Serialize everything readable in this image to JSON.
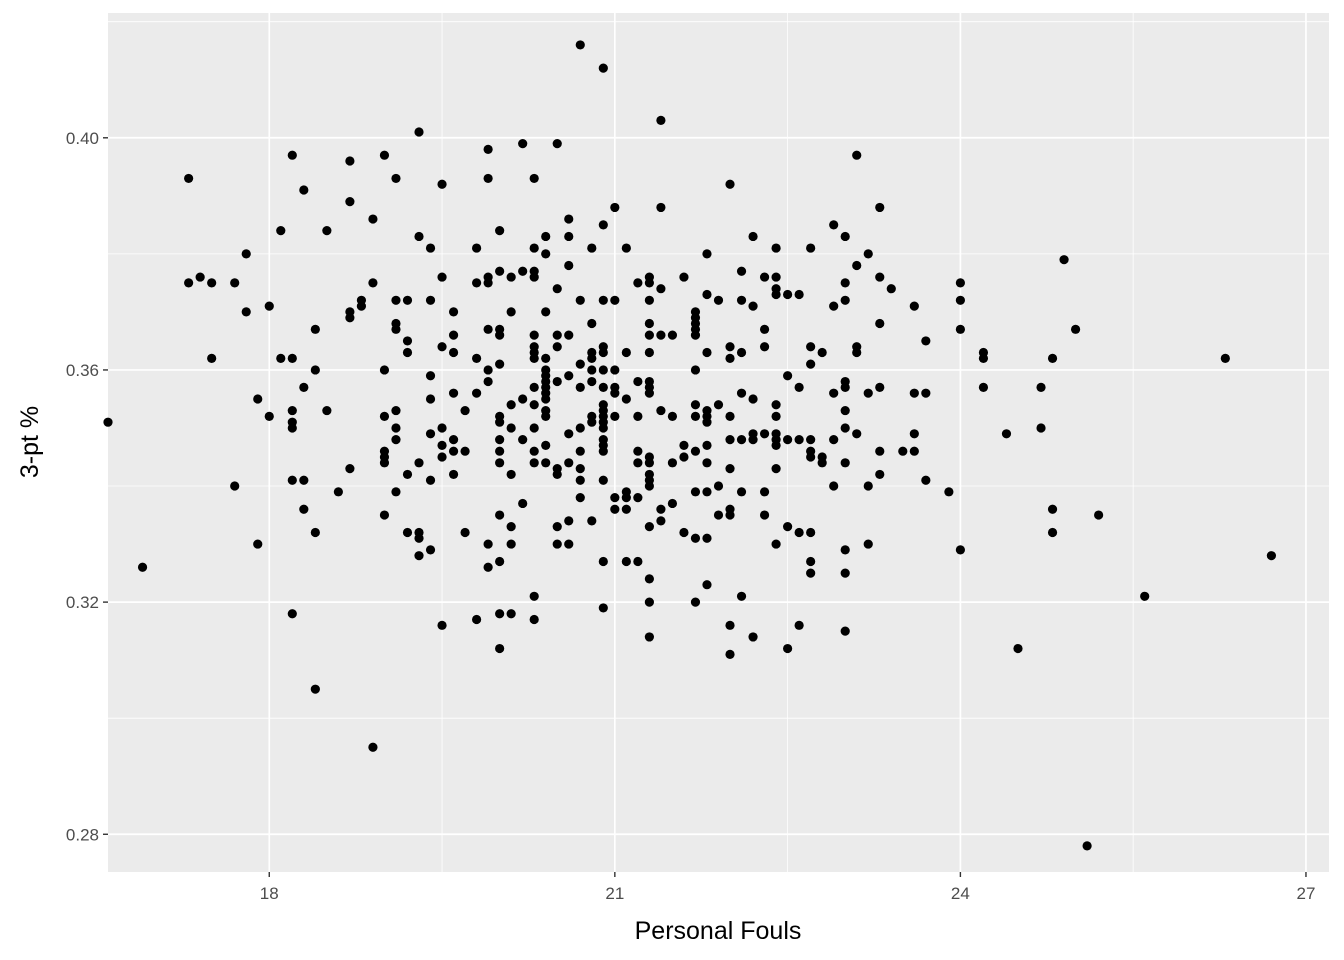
{
  "chart_data": {
    "type": "scatter",
    "title": "",
    "xlabel": "Personal Fouls",
    "ylabel": "3-pt %",
    "xlim": [
      16.6,
      27.2
    ],
    "ylim": [
      0.2735,
      0.4215
    ],
    "x_ticks": [
      18,
      21,
      24,
      27
    ],
    "x_tick_labels": [
      "18",
      "21",
      "24",
      "27"
    ],
    "y_ticks": [
      0.28,
      0.32,
      0.36,
      0.4
    ],
    "y_tick_labels": [
      "0.28",
      "0.32",
      "0.36",
      "0.40"
    ],
    "grid": true,
    "legend": "none",
    "colors": {
      "panel": "#ebebeb",
      "grid": "#ffffff",
      "point": "#000000"
    },
    "points": [
      [
        16.6,
        0.351
      ],
      [
        16.9,
        0.326
      ],
      [
        17.3,
        0.393
      ],
      [
        17.3,
        0.375
      ],
      [
        17.4,
        0.376
      ],
      [
        17.5,
        0.375
      ],
      [
        17.5,
        0.362
      ],
      [
        17.7,
        0.375
      ],
      [
        17.7,
        0.34
      ],
      [
        17.8,
        0.38
      ],
      [
        17.8,
        0.37
      ],
      [
        17.9,
        0.355
      ],
      [
        17.9,
        0.33
      ],
      [
        18.0,
        0.371
      ],
      [
        18.0,
        0.352
      ],
      [
        18.1,
        0.384
      ],
      [
        18.1,
        0.362
      ],
      [
        18.2,
        0.397
      ],
      [
        18.2,
        0.362
      ],
      [
        18.2,
        0.353
      ],
      [
        18.2,
        0.351
      ],
      [
        18.2,
        0.35
      ],
      [
        18.2,
        0.341
      ],
      [
        18.2,
        0.318
      ],
      [
        18.3,
        0.391
      ],
      [
        18.3,
        0.357
      ],
      [
        18.3,
        0.341
      ],
      [
        18.3,
        0.336
      ],
      [
        18.4,
        0.367
      ],
      [
        18.4,
        0.36
      ],
      [
        18.4,
        0.332
      ],
      [
        18.4,
        0.305
      ],
      [
        18.5,
        0.384
      ],
      [
        18.5,
        0.353
      ],
      [
        18.6,
        0.339
      ],
      [
        18.7,
        0.396
      ],
      [
        18.7,
        0.389
      ],
      [
        18.7,
        0.37
      ],
      [
        18.7,
        0.369
      ],
      [
        18.7,
        0.343
      ],
      [
        18.8,
        0.372
      ],
      [
        18.8,
        0.371
      ],
      [
        18.9,
        0.386
      ],
      [
        18.9,
        0.375
      ],
      [
        18.9,
        0.295
      ],
      [
        19.0,
        0.397
      ],
      [
        19.0,
        0.36
      ],
      [
        19.0,
        0.352
      ],
      [
        19.0,
        0.346
      ],
      [
        19.0,
        0.345
      ],
      [
        19.0,
        0.344
      ],
      [
        19.0,
        0.335
      ],
      [
        19.1,
        0.393
      ],
      [
        19.1,
        0.372
      ],
      [
        19.1,
        0.368
      ],
      [
        19.1,
        0.367
      ],
      [
        19.1,
        0.353
      ],
      [
        19.1,
        0.35
      ],
      [
        19.1,
        0.348
      ],
      [
        19.1,
        0.339
      ],
      [
        19.2,
        0.372
      ],
      [
        19.2,
        0.365
      ],
      [
        19.2,
        0.363
      ],
      [
        19.2,
        0.342
      ],
      [
        19.2,
        0.332
      ],
      [
        19.3,
        0.401
      ],
      [
        19.3,
        0.383
      ],
      [
        19.3,
        0.344
      ],
      [
        19.3,
        0.332
      ],
      [
        19.3,
        0.331
      ],
      [
        19.3,
        0.328
      ],
      [
        19.4,
        0.381
      ],
      [
        19.4,
        0.372
      ],
      [
        19.4,
        0.359
      ],
      [
        19.4,
        0.355
      ],
      [
        19.4,
        0.349
      ],
      [
        19.4,
        0.341
      ],
      [
        19.4,
        0.329
      ],
      [
        19.5,
        0.392
      ],
      [
        19.5,
        0.376
      ],
      [
        19.5,
        0.364
      ],
      [
        19.5,
        0.35
      ],
      [
        19.5,
        0.347
      ],
      [
        19.5,
        0.345
      ],
      [
        19.5,
        0.316
      ],
      [
        19.6,
        0.37
      ],
      [
        19.6,
        0.366
      ],
      [
        19.6,
        0.363
      ],
      [
        19.6,
        0.356
      ],
      [
        19.6,
        0.348
      ],
      [
        19.6,
        0.346
      ],
      [
        19.6,
        0.342
      ],
      [
        19.7,
        0.353
      ],
      [
        19.7,
        0.346
      ],
      [
        19.7,
        0.332
      ],
      [
        19.8,
        0.381
      ],
      [
        19.8,
        0.375
      ],
      [
        19.8,
        0.362
      ],
      [
        19.8,
        0.356
      ],
      [
        19.8,
        0.317
      ],
      [
        19.9,
        0.398
      ],
      [
        19.9,
        0.393
      ],
      [
        19.9,
        0.376
      ],
      [
        19.9,
        0.375
      ],
      [
        19.9,
        0.367
      ],
      [
        19.9,
        0.36
      ],
      [
        19.9,
        0.358
      ],
      [
        19.9,
        0.33
      ],
      [
        19.9,
        0.326
      ],
      [
        20.0,
        0.384
      ],
      [
        20.0,
        0.377
      ],
      [
        20.0,
        0.367
      ],
      [
        20.0,
        0.366
      ],
      [
        20.0,
        0.361
      ],
      [
        20.0,
        0.352
      ],
      [
        20.0,
        0.351
      ],
      [
        20.0,
        0.348
      ],
      [
        20.0,
        0.346
      ],
      [
        20.0,
        0.344
      ],
      [
        20.0,
        0.335
      ],
      [
        20.0,
        0.327
      ],
      [
        20.0,
        0.318
      ],
      [
        20.0,
        0.312
      ],
      [
        20.1,
        0.376
      ],
      [
        20.1,
        0.37
      ],
      [
        20.1,
        0.354
      ],
      [
        20.1,
        0.35
      ],
      [
        20.1,
        0.342
      ],
      [
        20.1,
        0.333
      ],
      [
        20.1,
        0.33
      ],
      [
        20.1,
        0.318
      ],
      [
        20.2,
        0.399
      ],
      [
        20.2,
        0.377
      ],
      [
        20.2,
        0.355
      ],
      [
        20.2,
        0.348
      ],
      [
        20.2,
        0.337
      ],
      [
        20.3,
        0.393
      ],
      [
        20.3,
        0.381
      ],
      [
        20.3,
        0.377
      ],
      [
        20.3,
        0.376
      ],
      [
        20.3,
        0.366
      ],
      [
        20.3,
        0.364
      ],
      [
        20.3,
        0.363
      ],
      [
        20.3,
        0.362
      ],
      [
        20.3,
        0.357
      ],
      [
        20.3,
        0.354
      ],
      [
        20.3,
        0.35
      ],
      [
        20.3,
        0.346
      ],
      [
        20.3,
        0.344
      ],
      [
        20.3,
        0.321
      ],
      [
        20.3,
        0.317
      ],
      [
        20.4,
        0.383
      ],
      [
        20.4,
        0.38
      ],
      [
        20.4,
        0.37
      ],
      [
        20.4,
        0.362
      ],
      [
        20.4,
        0.36
      ],
      [
        20.4,
        0.359
      ],
      [
        20.4,
        0.358
      ],
      [
        20.4,
        0.357
      ],
      [
        20.4,
        0.356
      ],
      [
        20.4,
        0.355
      ],
      [
        20.4,
        0.353
      ],
      [
        20.4,
        0.352
      ],
      [
        20.4,
        0.347
      ],
      [
        20.4,
        0.344
      ],
      [
        20.5,
        0.399
      ],
      [
        20.5,
        0.374
      ],
      [
        20.5,
        0.366
      ],
      [
        20.5,
        0.364
      ],
      [
        20.5,
        0.358
      ],
      [
        20.5,
        0.343
      ],
      [
        20.5,
        0.342
      ],
      [
        20.5,
        0.333
      ],
      [
        20.5,
        0.33
      ],
      [
        20.6,
        0.386
      ],
      [
        20.6,
        0.383
      ],
      [
        20.6,
        0.378
      ],
      [
        20.6,
        0.366
      ],
      [
        20.6,
        0.359
      ],
      [
        20.6,
        0.349
      ],
      [
        20.6,
        0.344
      ],
      [
        20.6,
        0.334
      ],
      [
        20.6,
        0.33
      ],
      [
        20.7,
        0.416
      ],
      [
        20.7,
        0.372
      ],
      [
        20.7,
        0.361
      ],
      [
        20.7,
        0.357
      ],
      [
        20.7,
        0.35
      ],
      [
        20.7,
        0.346
      ],
      [
        20.7,
        0.343
      ],
      [
        20.7,
        0.341
      ],
      [
        20.7,
        0.338
      ],
      [
        20.8,
        0.381
      ],
      [
        20.8,
        0.368
      ],
      [
        20.8,
        0.363
      ],
      [
        20.8,
        0.362
      ],
      [
        20.8,
        0.36
      ],
      [
        20.8,
        0.358
      ],
      [
        20.8,
        0.352
      ],
      [
        20.8,
        0.351
      ],
      [
        20.8,
        0.334
      ],
      [
        20.9,
        0.412
      ],
      [
        20.9,
        0.385
      ],
      [
        20.9,
        0.372
      ],
      [
        20.9,
        0.364
      ],
      [
        20.9,
        0.363
      ],
      [
        20.9,
        0.36
      ],
      [
        20.9,
        0.357
      ],
      [
        20.9,
        0.354
      ],
      [
        20.9,
        0.353
      ],
      [
        20.9,
        0.352
      ],
      [
        20.9,
        0.351
      ],
      [
        20.9,
        0.35
      ],
      [
        20.9,
        0.348
      ],
      [
        20.9,
        0.347
      ],
      [
        20.9,
        0.346
      ],
      [
        20.9,
        0.341
      ],
      [
        20.9,
        0.327
      ],
      [
        20.9,
        0.319
      ],
      [
        21.0,
        0.388
      ],
      [
        21.0,
        0.372
      ],
      [
        21.0,
        0.36
      ],
      [
        21.0,
        0.357
      ],
      [
        21.0,
        0.356
      ],
      [
        21.0,
        0.352
      ],
      [
        21.0,
        0.338
      ],
      [
        21.0,
        0.336
      ],
      [
        21.1,
        0.381
      ],
      [
        21.1,
        0.363
      ],
      [
        21.1,
        0.355
      ],
      [
        21.1,
        0.339
      ],
      [
        21.1,
        0.338
      ],
      [
        21.1,
        0.336
      ],
      [
        21.1,
        0.327
      ],
      [
        21.2,
        0.375
      ],
      [
        21.2,
        0.358
      ],
      [
        21.2,
        0.352
      ],
      [
        21.2,
        0.346
      ],
      [
        21.2,
        0.344
      ],
      [
        21.2,
        0.338
      ],
      [
        21.2,
        0.327
      ],
      [
        21.3,
        0.376
      ],
      [
        21.3,
        0.375
      ],
      [
        21.3,
        0.372
      ],
      [
        21.3,
        0.368
      ],
      [
        21.3,
        0.366
      ],
      [
        21.3,
        0.363
      ],
      [
        21.3,
        0.358
      ],
      [
        21.3,
        0.357
      ],
      [
        21.3,
        0.356
      ],
      [
        21.3,
        0.345
      ],
      [
        21.3,
        0.344
      ],
      [
        21.3,
        0.342
      ],
      [
        21.3,
        0.341
      ],
      [
        21.3,
        0.34
      ],
      [
        21.3,
        0.333
      ],
      [
        21.3,
        0.324
      ],
      [
        21.3,
        0.32
      ],
      [
        21.3,
        0.314
      ],
      [
        21.4,
        0.403
      ],
      [
        21.4,
        0.388
      ],
      [
        21.4,
        0.374
      ],
      [
        21.4,
        0.366
      ],
      [
        21.4,
        0.353
      ],
      [
        21.4,
        0.336
      ],
      [
        21.4,
        0.334
      ],
      [
        21.5,
        0.366
      ],
      [
        21.5,
        0.352
      ],
      [
        21.5,
        0.344
      ],
      [
        21.5,
        0.337
      ],
      [
        21.6,
        0.376
      ],
      [
        21.6,
        0.347
      ],
      [
        21.6,
        0.345
      ],
      [
        21.6,
        0.332
      ],
      [
        21.7,
        0.37
      ],
      [
        21.7,
        0.369
      ],
      [
        21.7,
        0.368
      ],
      [
        21.7,
        0.367
      ],
      [
        21.7,
        0.366
      ],
      [
        21.7,
        0.36
      ],
      [
        21.7,
        0.354
      ],
      [
        21.7,
        0.352
      ],
      [
        21.7,
        0.346
      ],
      [
        21.7,
        0.339
      ],
      [
        21.7,
        0.331
      ],
      [
        21.7,
        0.32
      ],
      [
        21.8,
        0.38
      ],
      [
        21.8,
        0.373
      ],
      [
        21.8,
        0.363
      ],
      [
        21.8,
        0.353
      ],
      [
        21.8,
        0.352
      ],
      [
        21.8,
        0.351
      ],
      [
        21.8,
        0.347
      ],
      [
        21.8,
        0.344
      ],
      [
        21.8,
        0.339
      ],
      [
        21.8,
        0.331
      ],
      [
        21.8,
        0.323
      ],
      [
        21.9,
        0.372
      ],
      [
        21.9,
        0.354
      ],
      [
        21.9,
        0.34
      ],
      [
        21.9,
        0.335
      ],
      [
        22.0,
        0.392
      ],
      [
        22.0,
        0.364
      ],
      [
        22.0,
        0.362
      ],
      [
        22.0,
        0.352
      ],
      [
        22.0,
        0.348
      ],
      [
        22.0,
        0.343
      ],
      [
        22.0,
        0.336
      ],
      [
        22.0,
        0.335
      ],
      [
        22.0,
        0.316
      ],
      [
        22.0,
        0.311
      ],
      [
        22.1,
        0.377
      ],
      [
        22.1,
        0.372
      ],
      [
        22.1,
        0.363
      ],
      [
        22.1,
        0.356
      ],
      [
        22.1,
        0.348
      ],
      [
        22.1,
        0.339
      ],
      [
        22.1,
        0.321
      ],
      [
        22.2,
        0.383
      ],
      [
        22.2,
        0.371
      ],
      [
        22.2,
        0.355
      ],
      [
        22.2,
        0.349
      ],
      [
        22.2,
        0.348
      ],
      [
        22.2,
        0.314
      ],
      [
        22.3,
        0.376
      ],
      [
        22.3,
        0.367
      ],
      [
        22.3,
        0.364
      ],
      [
        22.3,
        0.349
      ],
      [
        22.3,
        0.339
      ],
      [
        22.3,
        0.335
      ],
      [
        22.4,
        0.381
      ],
      [
        22.4,
        0.376
      ],
      [
        22.4,
        0.374
      ],
      [
        22.4,
        0.373
      ],
      [
        22.4,
        0.354
      ],
      [
        22.4,
        0.352
      ],
      [
        22.4,
        0.349
      ],
      [
        22.4,
        0.348
      ],
      [
        22.4,
        0.347
      ],
      [
        22.4,
        0.343
      ],
      [
        22.4,
        0.33
      ],
      [
        22.5,
        0.373
      ],
      [
        22.5,
        0.359
      ],
      [
        22.5,
        0.348
      ],
      [
        22.5,
        0.333
      ],
      [
        22.5,
        0.312
      ],
      [
        22.6,
        0.373
      ],
      [
        22.6,
        0.357
      ],
      [
        22.6,
        0.348
      ],
      [
        22.6,
        0.332
      ],
      [
        22.6,
        0.316
      ],
      [
        22.7,
        0.381
      ],
      [
        22.7,
        0.364
      ],
      [
        22.7,
        0.361
      ],
      [
        22.7,
        0.348
      ],
      [
        22.7,
        0.346
      ],
      [
        22.7,
        0.345
      ],
      [
        22.7,
        0.332
      ],
      [
        22.7,
        0.327
      ],
      [
        22.7,
        0.325
      ],
      [
        22.8,
        0.363
      ],
      [
        22.8,
        0.345
      ],
      [
        22.8,
        0.344
      ],
      [
        22.9,
        0.385
      ],
      [
        22.9,
        0.371
      ],
      [
        22.9,
        0.356
      ],
      [
        22.9,
        0.348
      ],
      [
        22.9,
        0.34
      ],
      [
        23.0,
        0.383
      ],
      [
        23.0,
        0.375
      ],
      [
        23.0,
        0.372
      ],
      [
        23.0,
        0.358
      ],
      [
        23.0,
        0.357
      ],
      [
        23.0,
        0.353
      ],
      [
        23.0,
        0.35
      ],
      [
        23.0,
        0.344
      ],
      [
        23.0,
        0.329
      ],
      [
        23.0,
        0.325
      ],
      [
        23.0,
        0.315
      ],
      [
        23.1,
        0.397
      ],
      [
        23.1,
        0.378
      ],
      [
        23.1,
        0.364
      ],
      [
        23.1,
        0.363
      ],
      [
        23.1,
        0.349
      ],
      [
        23.2,
        0.38
      ],
      [
        23.2,
        0.356
      ],
      [
        23.2,
        0.34
      ],
      [
        23.2,
        0.33
      ],
      [
        23.3,
        0.388
      ],
      [
        23.3,
        0.376
      ],
      [
        23.3,
        0.368
      ],
      [
        23.3,
        0.357
      ],
      [
        23.3,
        0.346
      ],
      [
        23.3,
        0.342
      ],
      [
        23.4,
        0.374
      ],
      [
        23.5,
        0.346
      ],
      [
        23.6,
        0.371
      ],
      [
        23.6,
        0.356
      ],
      [
        23.6,
        0.349
      ],
      [
        23.6,
        0.346
      ],
      [
        23.7,
        0.365
      ],
      [
        23.7,
        0.356
      ],
      [
        23.7,
        0.341
      ],
      [
        23.9,
        0.339
      ],
      [
        24.0,
        0.375
      ],
      [
        24.0,
        0.372
      ],
      [
        24.0,
        0.367
      ],
      [
        24.0,
        0.329
      ],
      [
        24.2,
        0.363
      ],
      [
        24.2,
        0.362
      ],
      [
        24.2,
        0.357
      ],
      [
        24.4,
        0.349
      ],
      [
        24.5,
        0.312
      ],
      [
        24.7,
        0.357
      ],
      [
        24.7,
        0.35
      ],
      [
        24.8,
        0.362
      ],
      [
        24.8,
        0.336
      ],
      [
        24.8,
        0.332
      ],
      [
        24.9,
        0.379
      ],
      [
        25.0,
        0.367
      ],
      [
        25.1,
        0.278
      ],
      [
        25.2,
        0.335
      ],
      [
        25.6,
        0.321
      ],
      [
        26.3,
        0.362
      ],
      [
        26.7,
        0.328
      ]
    ]
  }
}
